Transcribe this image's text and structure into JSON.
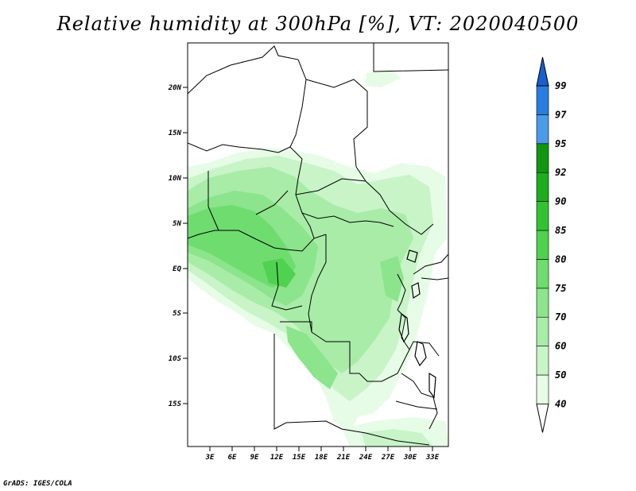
{
  "title": "Relative humidity at 300hPa [%], VT: 2020040500",
  "credit": "GrADS: IGES/COLA",
  "map": {
    "lat_labels": [
      "20N",
      "15N",
      "10N",
      "5N",
      "EQ",
      "5S",
      "10S",
      "15S"
    ],
    "lon_labels": [
      "3E",
      "6E",
      "9E",
      "12E",
      "15E",
      "18E",
      "21E",
      "24E",
      "27E",
      "30E",
      "33E"
    ],
    "lon_range": [
      0,
      35
    ],
    "lat_range": [
      -20,
      25
    ]
  },
  "colorbar": {
    "levels": [
      "40",
      "50",
      "60",
      "70",
      "75",
      "80",
      "85",
      "90",
      "92",
      "95",
      "97",
      "99"
    ],
    "colors": [
      "#ffffff",
      "#e6fce6",
      "#c8f4c8",
      "#a8eca8",
      "#8ce48c",
      "#6fdc6f",
      "#4fd24f",
      "#32c232",
      "#1ead1e",
      "#119611",
      "#4a9ce8",
      "#2a7de0",
      "#1a5fd0"
    ]
  }
}
